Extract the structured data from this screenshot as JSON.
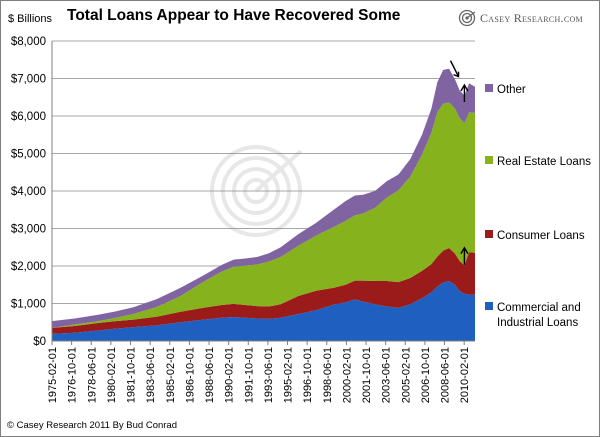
{
  "title": "Total Loans Appear to Have Recovered Some",
  "y_axis_unit": "$ Billions",
  "brand": "Casey Research.com",
  "footer": "© Casey Research 2011 By Bud Conrad",
  "colors": {
    "commercial": "#1f5fbf",
    "consumer": "#9b1b1b",
    "real_estate": "#86b31d",
    "other": "#8064a2"
  },
  "chart_data": {
    "type": "area",
    "stacked": true,
    "title": "Total Loans Appear to Have Recovered Some",
    "ylabel": "$ Billions",
    "ylim": [
      0,
      8000
    ],
    "y_ticks": [
      "$0",
      "$1,000",
      "$2,000",
      "$3,000",
      "$4,000",
      "$5,000",
      "$6,000",
      "$7,000",
      "$8,000"
    ],
    "x_ticks": [
      "1975-02-01",
      "1976-10-01",
      "1978-06-01",
      "1980-02-01",
      "1981-10-01",
      "1983-06-01",
      "1985-02-01",
      "1986-10-01",
      "1988-06-01",
      "1990-02-01",
      "1991-10-01",
      "1993-06-01",
      "1995-02-01",
      "1996-10-01",
      "1998-06-01",
      "2000-02-01",
      "2001-10-01",
      "2003-06-01",
      "2005-02-01",
      "2006-10-01",
      "2008-06-01",
      "2010-02-01"
    ],
    "legend_position": "right",
    "gridlines": "horizontal",
    "x": [
      1975.08,
      1977,
      1979,
      1980.5,
      1982,
      1984,
      1986,
      1988,
      1989.5,
      1990.5,
      1991.5,
      1992.5,
      1993.5,
      1994.5,
      1996,
      1997.5,
      1999,
      2000,
      2000.8,
      2001.5,
      2002.5,
      2003.5,
      2004.5,
      2005.5,
      2006.5,
      2007.3,
      2007.8,
      2008.3,
      2008.8,
      2009.3,
      2009.7,
      2010.1,
      2010.5,
      2011.0
    ],
    "series": [
      {
        "name": "Commercial and Industrial Loans",
        "key": "commercial",
        "values": [
          190,
          220,
          280,
          330,
          370,
          420,
          500,
          570,
          620,
          640,
          620,
          600,
          590,
          620,
          720,
          820,
          970,
          1030,
          1110,
          1050,
          980,
          920,
          880,
          980,
          1140,
          1300,
          1450,
          1560,
          1600,
          1500,
          1330,
          1260,
          1240,
          1230
        ]
      },
      {
        "name": "Consumer Loans",
        "key": "consumer",
        "values": [
          160,
          180,
          200,
          200,
          200,
          230,
          280,
          320,
          340,
          350,
          340,
          330,
          330,
          360,
          480,
          520,
          450,
          470,
          500,
          560,
          620,
          680,
          690,
          700,
          730,
          750,
          800,
          850,
          880,
          830,
          800,
          760,
          1130,
          1120
        ]
      },
      {
        "name": "Real Estate Loans",
        "key": "real_estate",
        "values": [
          0,
          40,
          50,
          90,
          150,
          260,
          420,
          700,
          890,
          990,
          1050,
          1110,
          1200,
          1260,
          1340,
          1470,
          1620,
          1700,
          1740,
          1790,
          1950,
          2220,
          2450,
          2700,
          3100,
          3500,
          3850,
          3920,
          3880,
          3870,
          3810,
          3790,
          3730,
          3730
        ]
      },
      {
        "name": "Other",
        "key": "other",
        "values": [
          180,
          160,
          170,
          170,
          180,
          210,
          220,
          170,
          180,
          190,
          190,
          200,
          220,
          260,
          310,
          340,
          460,
          530,
          530,
          500,
          450,
          440,
          420,
          470,
          530,
          650,
          800,
          900,
          900,
          780,
          740,
          740,
          770,
          700
        ]
      }
    ],
    "annotations": [
      {
        "type": "arrow-up",
        "x": 2010.1,
        "y": 6800
      },
      {
        "type": "arrow-down",
        "x": 2009.6,
        "y": 7050
      },
      {
        "type": "arrow-up",
        "x": 2010.1,
        "y": 2460
      }
    ]
  }
}
